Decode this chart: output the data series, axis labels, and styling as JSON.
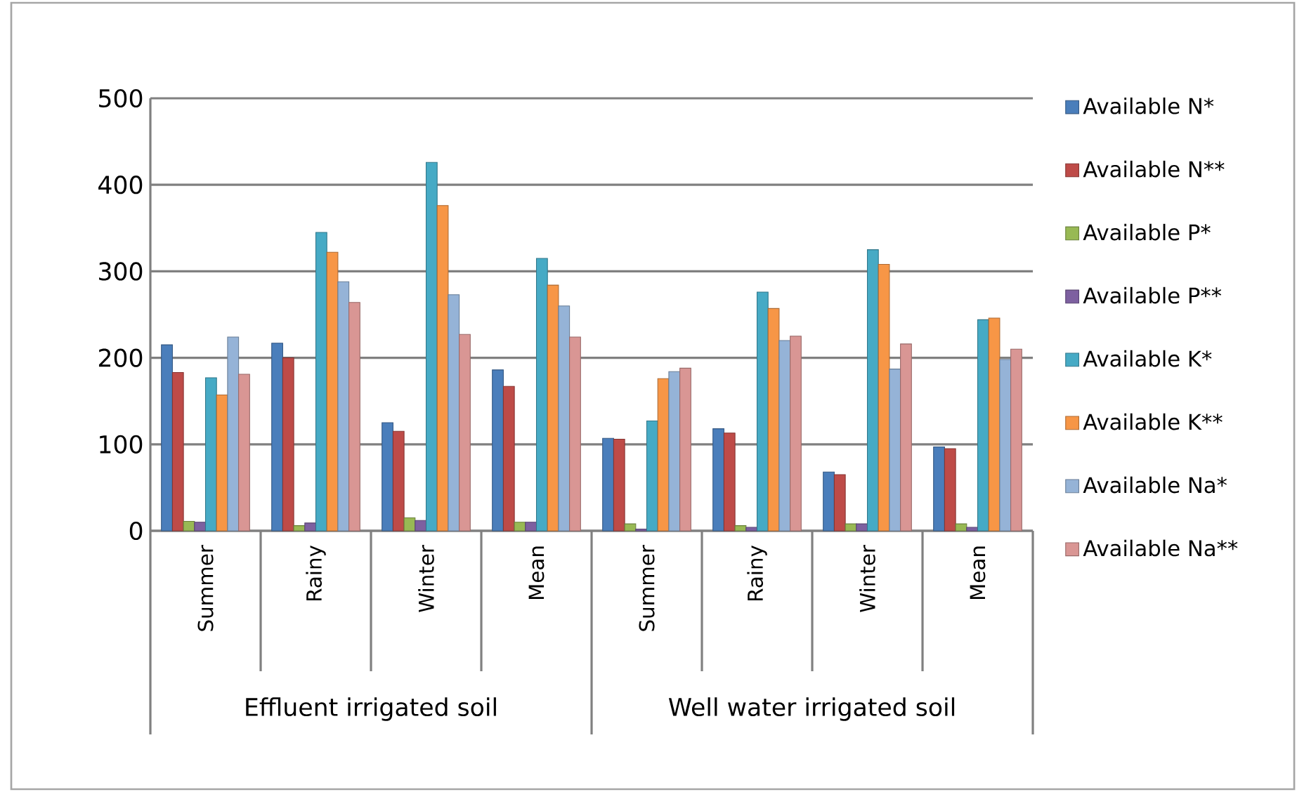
{
  "chart_data": {
    "type": "bar",
    "categories": [
      "Summer",
      "Rainy",
      "Winter",
      "Mean",
      "Summer",
      "Rainy",
      "Winter",
      "Mean"
    ],
    "annotations": [
      "Effluent irrigated soil",
      "Well water irrigated soil"
    ],
    "series": [
      {
        "name": "Available N*",
        "color": "#4a7ebb",
        "values": [
          215,
          217,
          125,
          186,
          107,
          118,
          68,
          97
        ]
      },
      {
        "name": "Available N**",
        "color": "#be4b48",
        "values": [
          183,
          200,
          115,
          167,
          106,
          113,
          65,
          95
        ]
      },
      {
        "name": "Available P*",
        "color": "#98b954",
        "values": [
          11,
          6,
          15,
          10,
          8,
          6,
          8,
          8
        ]
      },
      {
        "name": "Available P**",
        "color": "#7d60a0",
        "values": [
          10,
          9,
          12,
          10,
          2,
          4,
          8,
          4
        ]
      },
      {
        "name": "Available K*",
        "color": "#46aac5",
        "values": [
          177,
          345,
          426,
          315,
          127,
          276,
          325,
          244
        ]
      },
      {
        "name": "Available K**",
        "color": "#f79646",
        "values": [
          157,
          322,
          376,
          284,
          176,
          257,
          308,
          246
        ]
      },
      {
        "name": "Available Na*",
        "color": "#95b3d7",
        "values": [
          224,
          288,
          273,
          260,
          184,
          220,
          187,
          198
        ]
      },
      {
        "name": "Available Na**",
        "color": "#d99694",
        "values": [
          181,
          264,
          227,
          224,
          188,
          225,
          216,
          210
        ]
      }
    ],
    "ylim": [
      0,
      500
    ],
    "yticks": [
      0,
      100,
      200,
      300,
      400,
      500
    ],
    "grid": "y",
    "legend": "right"
  }
}
